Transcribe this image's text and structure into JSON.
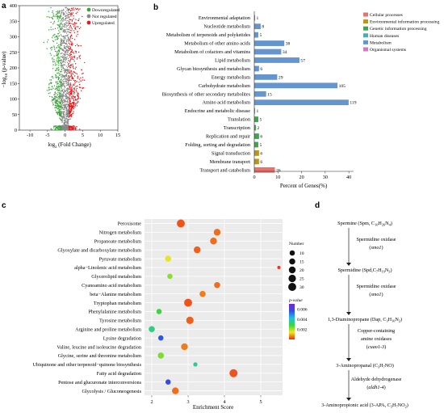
{
  "panels": {
    "a": "a",
    "b": "b",
    "c": "c",
    "d": "d"
  },
  "chart_data": [
    {
      "panel": "a",
      "type": "scatter",
      "xlabel_main": "log",
      "xlabel_sub": "2",
      "xlabel_rest": " (Fold Change)",
      "ylabel_main": "−log",
      "ylabel_sub": "10",
      "ylabel_rest": " (p-value)",
      "xlim": [
        -13,
        15
      ],
      "ylim": [
        0,
        400
      ],
      "x_ticks": [
        "-10",
        "-5",
        "0",
        "5",
        "10",
        "15"
      ],
      "x_tick_values": [
        -10,
        -5,
        0,
        5,
        10,
        15
      ],
      "y_ticks": [
        "0",
        "50",
        "100",
        "150",
        "200",
        "250",
        "300",
        "350",
        "400"
      ],
      "y_tick_values": [
        0,
        50,
        100,
        150,
        200,
        250,
        300,
        350,
        400
      ],
      "legend": [
        {
          "name": "Downregulated",
          "color": "#3aa33a"
        },
        {
          "name": "Not regulated",
          "color": "#8a8a8a"
        },
        {
          "name": "Upregulated",
          "color": "#e31a1c"
        }
      ],
      "legend_position": "top-right"
    },
    {
      "panel": "b",
      "type": "bar",
      "orientation": "horizontal",
      "xlabel": "Percent of Genes(%)",
      "xlim": [
        0,
        42
      ],
      "x_ticks": [
        "0",
        "10",
        "20",
        "30",
        "40"
      ],
      "x_tick_values": [
        0,
        10,
        20,
        30,
        40
      ],
      "categories": [
        "Environmental adaptation",
        "Nucleotide metabolism",
        "Metabolism of terpenoids and polyketides",
        "Metabolism of other amino acids",
        "Metabolism of cofactors and vitamins",
        "Lipid metabolism",
        "Glycan biosynthesis and metabolism",
        "Energy metabolism",
        "Carbohydrate metabolism",
        "Biosynthesis of other secondary metabolites",
        "Amino acid metabolism",
        "Endocrine and metabolic disease",
        "Translation",
        "Transcription",
        "Replication and repair",
        "Folding, sorting and degradation",
        "Signal transduction",
        "Membrane transport",
        "Transport and catabolism"
      ],
      "values": [
        0.35,
        2.7,
        1.7,
        12.7,
        11.4,
        19.1,
        2.0,
        9.7,
        35.2,
        5.0,
        39.9,
        0.35,
        1.7,
        0.7,
        2.0,
        1.7,
        2.0,
        2.0,
        8.7
      ],
      "labels": [
        "1",
        "8",
        "5",
        "38",
        "34",
        "57",
        "6",
        "29",
        "105",
        "15",
        "119",
        "1",
        "5",
        "2",
        "6",
        "5",
        "6",
        "6",
        "26"
      ],
      "groups": [
        "Metabolism",
        "Metabolism",
        "Metabolism",
        "Metabolism",
        "Metabolism",
        "Metabolism",
        "Metabolism",
        "Metabolism",
        "Metabolism",
        "Metabolism",
        "Metabolism",
        "Human diseases",
        "Genetic information processing",
        "Genetic information processing",
        "Genetic information processing",
        "Genetic information processing",
        "Environmental information processing",
        "Environmental information processing",
        "Cellular processes"
      ],
      "legend": [
        {
          "name": "Cellular processes",
          "color": "#e8706d"
        },
        {
          "name": "Environmental information processing",
          "color": "#b7951e"
        },
        {
          "name": "Genetic information processing",
          "color": "#3fa64a"
        },
        {
          "name": "Human diseases",
          "color": "#3eb0b6"
        },
        {
          "name": "Metabolism",
          "color": "#6495cf"
        },
        {
          "name": "Organismal systems",
          "color": "#d478c4"
        }
      ],
      "legend_position": "right"
    },
    {
      "panel": "c",
      "type": "scatter",
      "subtype": "bubble",
      "xlabel": "Enrichment Score",
      "xlim": [
        1.8,
        5.6
      ],
      "x_ticks": [
        "2",
        "3",
        "4",
        "5"
      ],
      "x_tick_values": [
        2,
        3,
        4,
        5
      ],
      "categories": [
        "Peroxisome",
        "Nitrogen metabolism",
        "Propanoate metabolism",
        "Glyoxylate and dicarboxylate metabolism",
        "Pyruvate metabolism",
        "alpha−Linolenic acid metabolism",
        "Glycerolipid metabolism",
        "Cyanoamino acid metabolism",
        "beta−Alanine metabolism",
        "Tryptophan metabolism",
        "Phenylalanine metabolism",
        "Tyrosine metabolism",
        "Arginine and proline metabolism",
        "Lysine degradation",
        "Valine, leucine and isoleucine degradation",
        "Glycine, serine and threonine metabolism",
        "Ubiquinone and other terpenoid−quinone biosynthesis",
        "Fatty acid degradation",
        "Pentose and glucuronate interconversions",
        "Glycolysis / Gluconeogenesis"
      ],
      "x": [
        2.8,
        3.8,
        3.7,
        3.25,
        2.45,
        5.5,
        2.5,
        3.8,
        3.4,
        3.0,
        2.2,
        3.05,
        2.0,
        2.25,
        2.9,
        2.25,
        3.2,
        4.25,
        2.45,
        2.65
      ],
      "size": [
        30,
        20,
        20,
        20,
        15,
        2,
        10,
        15,
        15,
        30,
        10,
        25,
        15,
        10,
        20,
        15,
        5,
        30,
        10,
        20
      ],
      "pvalue": [
        0.0003,
        0.0005,
        0.0005,
        0.0004,
        0.0015,
        0.0001,
        0.0022,
        0.0005,
        0.0006,
        0.0003,
        0.0028,
        0.0004,
        0.0034,
        0.0055,
        0.0006,
        0.0023,
        0.0035,
        0.0003,
        0.0058,
        0.0005
      ],
      "size_legend_title": "Number",
      "size_legend": [
        "10",
        "15",
        "20",
        "25",
        "30"
      ],
      "size_legend_values": [
        10,
        15,
        20,
        25,
        30
      ],
      "color_legend_title": "p-value",
      "color_legend_ticks": [
        "0.006",
        "0.004",
        "0.002"
      ],
      "color_legend_tick_values": [
        0.006,
        0.004,
        0.002
      ]
    }
  ],
  "pathway": {
    "nodes": [
      {
        "name": "Spermine (Spm, C",
        "formula_sub": "10",
        "formula_mid": "H",
        "formula_sub2": "26",
        "formula_mid2": "N",
        "formula_sub3": "4",
        "formula_end": ")"
      },
      {
        "name": "Spermidine (Spd,C",
        "formula_sub": "7",
        "formula_mid": "H",
        "formula_sub2": "19",
        "formula_mid2": "N",
        "formula_sub3": "3",
        "formula_end": ")"
      },
      {
        "name": "1,3-Diaminopropane (Dap, C",
        "formula_sub": "3",
        "formula_mid": "H",
        "formula_sub2": "10",
        "formula_mid2": "N",
        "formula_sub3": "2",
        "formula_end": ")"
      },
      {
        "name": "3-Aminopropanal (C",
        "formula_sub": "3",
        "formula_mid": "H",
        "formula_sub2": "7",
        "formula_mid2": "NO",
        "formula_sub3": "",
        "formula_end": ")"
      },
      {
        "name": "3-Aminopropionic acid (3-APA, C",
        "formula_sub": "3",
        "formula_mid": "H",
        "formula_sub2": "7",
        "formula_mid2": "NO",
        "formula_sub3": "2",
        "formula_end": ")"
      }
    ],
    "enzymes": [
      {
        "line1": "Spermidine oxidase",
        "gene": "smo1"
      },
      {
        "line1": "Spermidine oxidase",
        "gene": "smo1"
      },
      {
        "line1": "Copper-containing",
        "line2": "amine oxidases",
        "gene": "cuao1-3"
      },
      {
        "line1": "Aldehyde dehydrogenase",
        "gene": "aldh1-4"
      }
    ]
  }
}
